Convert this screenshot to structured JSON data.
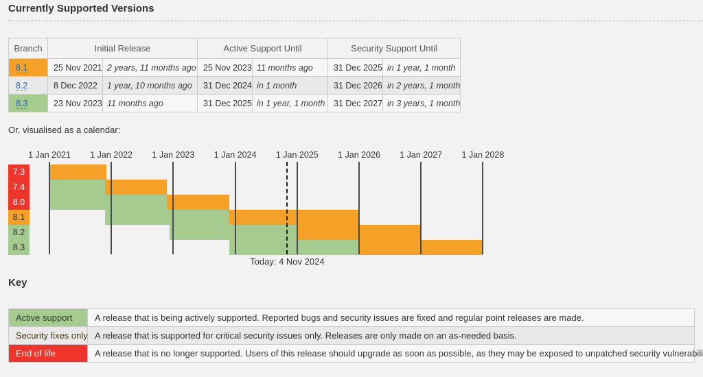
{
  "page": {
    "title": "Currently Supported Versions",
    "calendar_intro": "Or, visualised as a calendar:",
    "key_title": "Key"
  },
  "colors": {
    "active_support_green": "#a5cb90",
    "security_fixes_orange": "#f5a026",
    "end_of_life_red": "#ef342c",
    "branch_link_blue": "#336699",
    "page_background": "#f2f2f2"
  },
  "versions_table": {
    "headers": {
      "branch": "Branch",
      "initial": "Initial Release",
      "active": "Active Support Until",
      "security": "Security Support Until"
    },
    "rows": [
      {
        "branch": "8.1",
        "status": "security",
        "initial_date": "25 Nov 2021",
        "initial_rel": "2 years, 11 months ago",
        "active_date": "25 Nov 2023",
        "active_rel": "11 months ago",
        "security_date": "31 Dec 2025",
        "security_rel": "in 1 year, 1 month"
      },
      {
        "branch": "8.2",
        "status": "active",
        "initial_date": "8 Dec 2022",
        "initial_rel": "1 year, 10 months ago",
        "active_date": "31 Dec 2024",
        "active_rel": "in 1 month",
        "security_date": "31 Dec 2026",
        "security_rel": "in 2 years, 1 month"
      },
      {
        "branch": "8.3",
        "status": "active",
        "initial_date": "23 Nov 2023",
        "initial_rel": "11 months ago",
        "active_date": "31 Dec 2025",
        "active_rel": "in 1 year, 1 month",
        "security_date": "31 Dec 2027",
        "security_rel": "in 3 years, 1 month"
      }
    ]
  },
  "chart_data": {
    "type": "timeline",
    "x_axis": {
      "labels": [
        "1 Jan 2021",
        "1 Jan 2022",
        "1 Jan 2023",
        "1 Jan 2024",
        "1 Jan 2025",
        "1 Jan 2026",
        "1 Jan 2027",
        "1 Jan 2028"
      ],
      "values": [
        2021,
        2022,
        2023,
        2024,
        2025,
        2026,
        2027,
        2028
      ],
      "range": [
        2021,
        2028
      ]
    },
    "today": {
      "label": "Today: 4 Nov 2024",
      "value": 2024.84
    },
    "rows": [
      {
        "branch": "7.3",
        "label_status": "eol",
        "segments": [
          {
            "status": "security",
            "start": 2021.0,
            "end": 2021.92
          }
        ]
      },
      {
        "branch": "7.4",
        "label_status": "eol",
        "segments": [
          {
            "status": "active",
            "start": 2021.0,
            "end": 2021.9
          },
          {
            "status": "security",
            "start": 2021.9,
            "end": 2022.9
          }
        ]
      },
      {
        "branch": "8.0",
        "label_status": "eol",
        "segments": [
          {
            "status": "active",
            "start": 2021.0,
            "end": 2022.9
          },
          {
            "status": "security",
            "start": 2022.9,
            "end": 2023.9
          }
        ]
      },
      {
        "branch": "8.1",
        "label_status": "security",
        "segments": [
          {
            "status": "active",
            "start": 2021.9,
            "end": 2023.9
          },
          {
            "status": "security",
            "start": 2023.9,
            "end": 2026.0
          }
        ]
      },
      {
        "branch": "8.2",
        "label_status": "active",
        "segments": [
          {
            "status": "active",
            "start": 2022.94,
            "end": 2025.0
          },
          {
            "status": "security",
            "start": 2025.0,
            "end": 2027.0
          }
        ]
      },
      {
        "branch": "8.3",
        "label_status": "active",
        "segments": [
          {
            "status": "active",
            "start": 2023.9,
            "end": 2026.0
          },
          {
            "status": "security",
            "start": 2026.0,
            "end": 2028.0
          }
        ]
      }
    ]
  },
  "key_table": {
    "rows": [
      {
        "label": "Active support",
        "status": "active",
        "description": "A release that is being actively supported. Reported bugs and security issues are fixed and regular point releases are made."
      },
      {
        "label": "Security fixes only",
        "status": "security",
        "description": "A release that is supported for critical security issues only. Releases are only made on an as-needed basis."
      },
      {
        "label": "End of life",
        "status": "eol",
        "description": "A release that is no longer supported. Users of this release should upgrade as soon as possible, as they may be exposed to unpatched security vulnerabilities."
      }
    ]
  }
}
